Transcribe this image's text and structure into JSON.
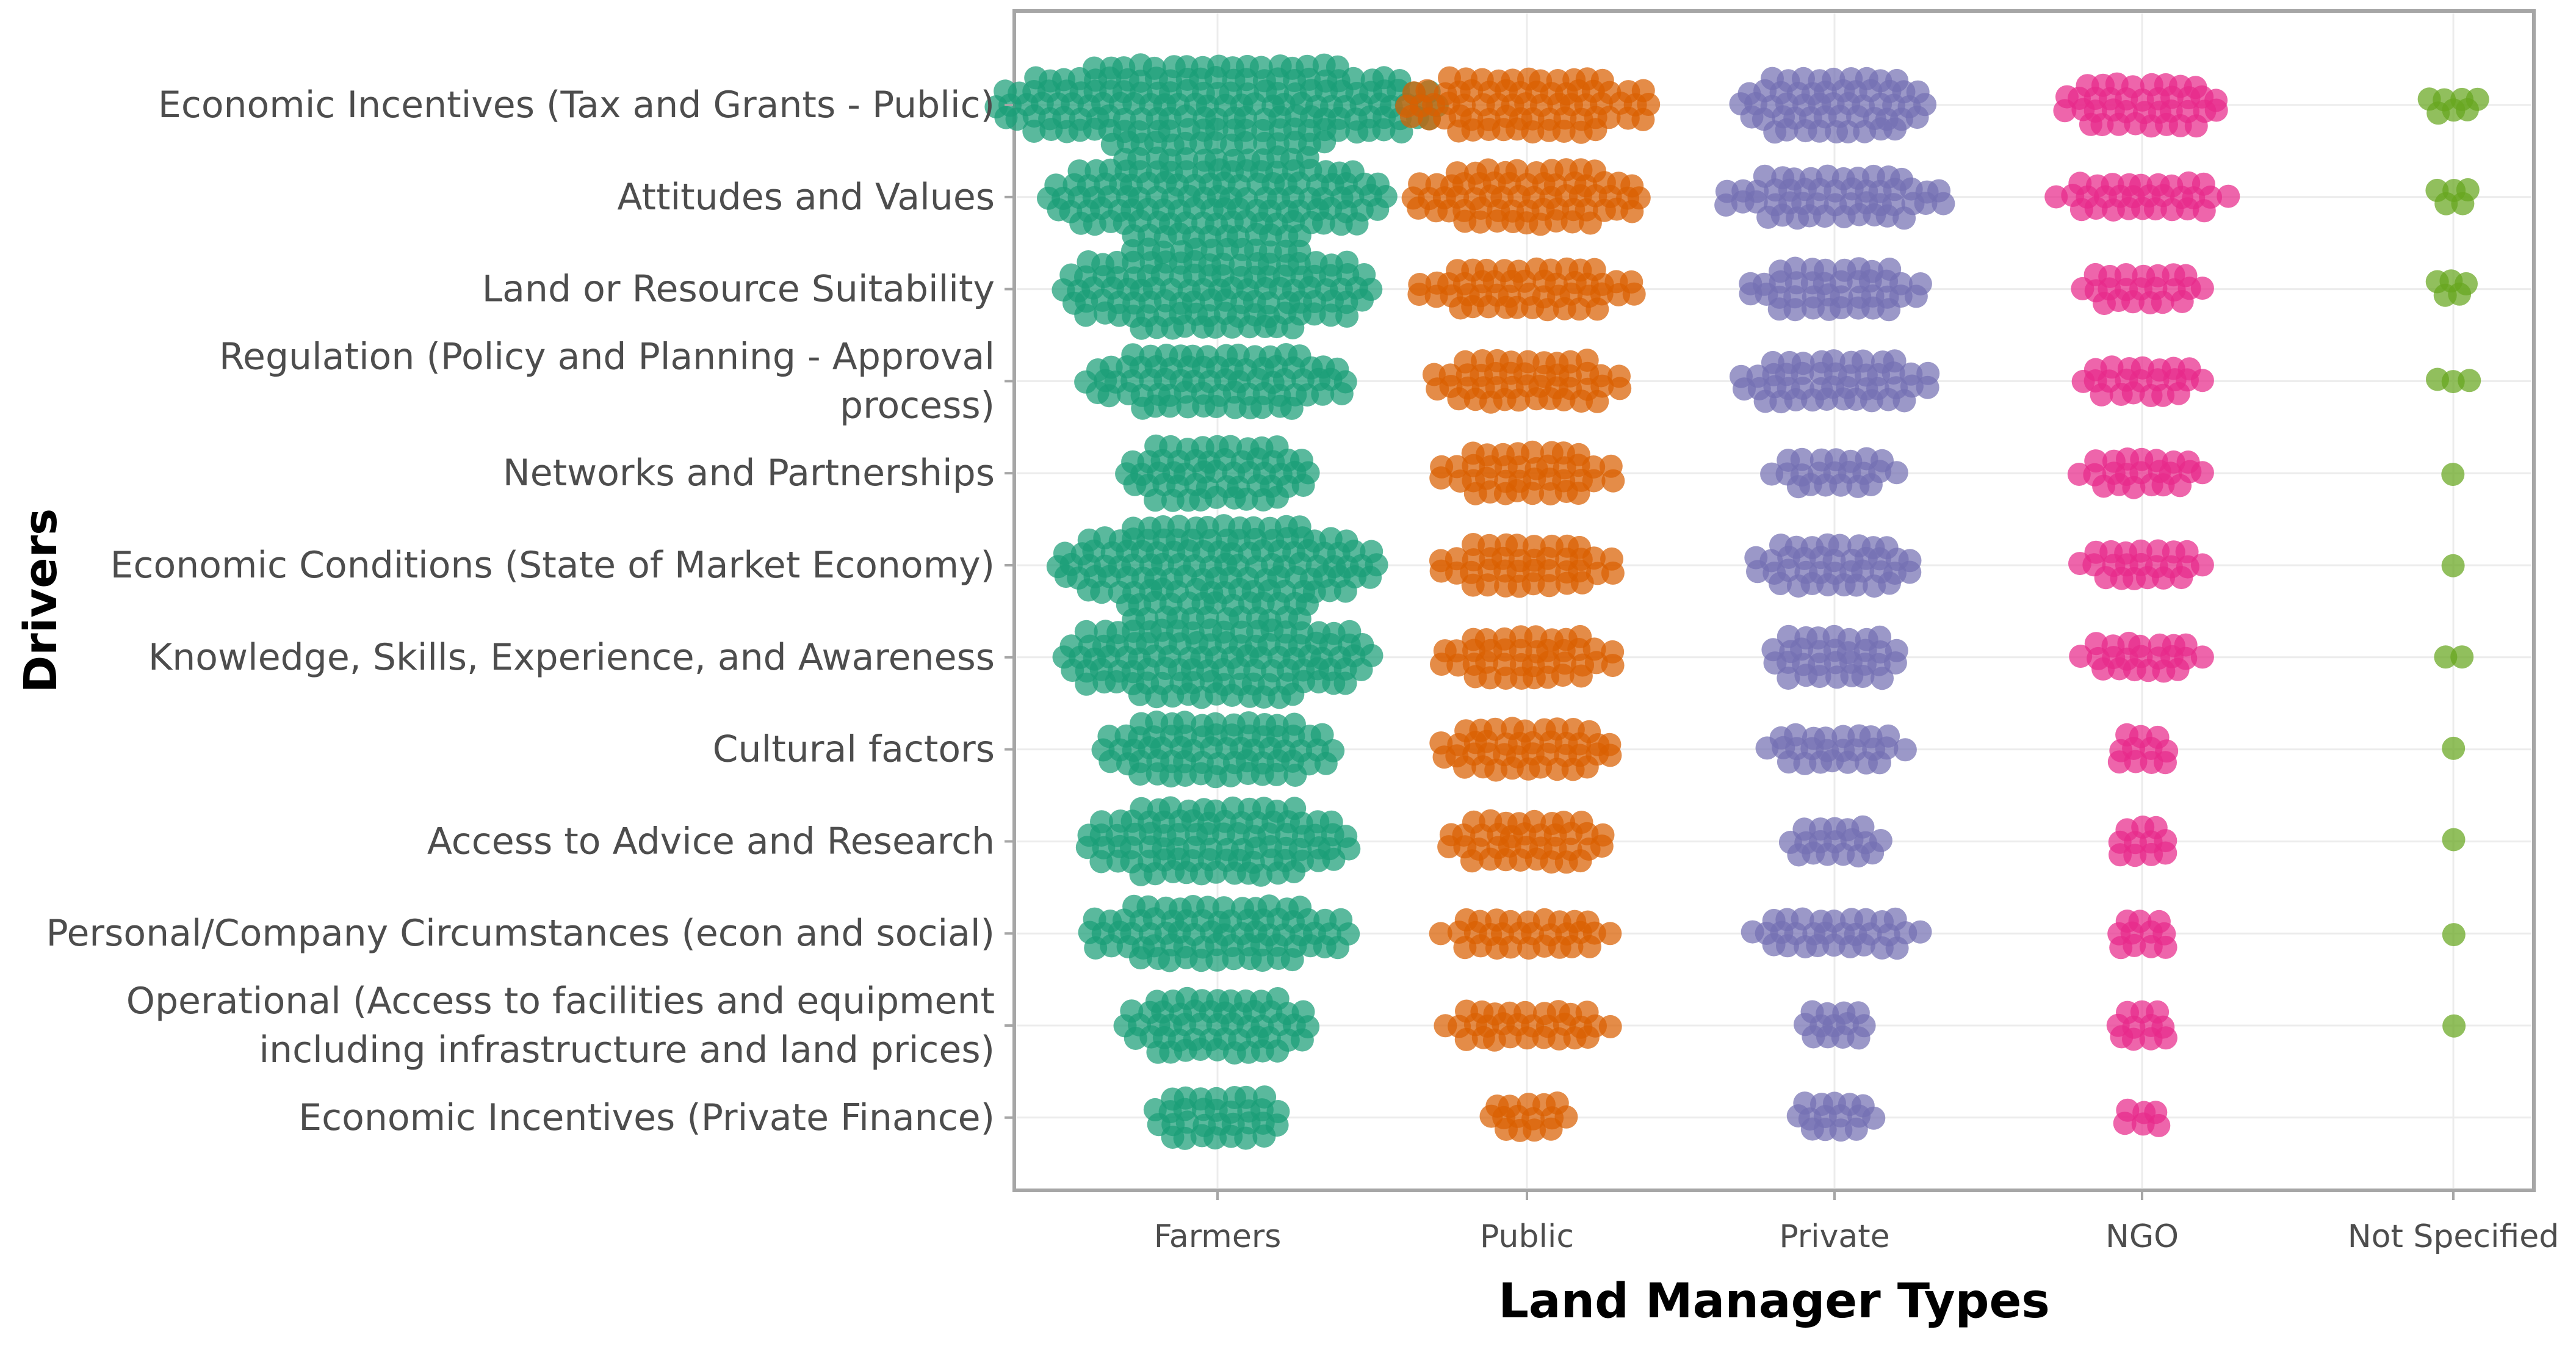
{
  "chart_data": {
    "type": "scatter",
    "subtype": "beeswarm",
    "xlabel": "Land Manager Types",
    "ylabel": "Drivers",
    "grid": true,
    "legend": "none",
    "categories": [
      "Farmers",
      "Public",
      "Private",
      "NGO",
      "Not Specified"
    ],
    "category_colors": [
      "#1b9e77",
      "#d95f02",
      "#7570b3",
      "#e7298a",
      "#66a61e"
    ],
    "drivers": [
      {
        "label": [
          "Economic Incentives (Tax and Grants - Public)"
        ],
        "counts": [
          170,
          70,
          55,
          38,
          7
        ]
      },
      {
        "label": [
          "Attitudes and Values"
        ],
        "counts": [
          130,
          65,
          50,
          30,
          5
        ]
      },
      {
        "label": [
          "Land or Resource Suitability"
        ],
        "counts": [
          120,
          50,
          40,
          22,
          5
        ]
      },
      {
        "label": [
          "Regulation (Policy and Planning - Approval",
          "process)"
        ],
        "counts": [
          75,
          45,
          45,
          22,
          3
        ]
      },
      {
        "label": [
          "Networks and Partnerships"
        ],
        "counts": [
          55,
          40,
          22,
          22,
          1
        ]
      },
      {
        "label": [
          "Economic Conditions (State of Market Economy)"
        ],
        "counts": [
          125,
          40,
          38,
          22,
          1
        ]
      },
      {
        "label": [
          "Knowledge, Skills, Experience, and Awareness"
        ],
        "counts": [
          120,
          40,
          32,
          22,
          2
        ]
      },
      {
        "label": [
          "Cultural factors"
        ],
        "counts": [
          68,
          42,
          25,
          11,
          1
        ]
      },
      {
        "label": [
          "Access to Advice and Research"
        ],
        "counts": [
          90,
          38,
          18,
          11,
          1
        ]
      },
      {
        "label": [
          "Personal/Company Circumstances (econ and social)"
        ],
        "counts": [
          75,
          30,
          30,
          11,
          1
        ]
      },
      {
        "label": [
          "Operational (Access to facilities and equipment",
          "including infrastructure and land prices)"
        ],
        "counts": [
          55,
          30,
          13,
          11,
          1
        ]
      },
      {
        "label": [
          "Economic Incentives (Private Finance)"
        ],
        "counts": [
          32,
          15,
          15,
          6,
          0
        ]
      }
    ]
  }
}
